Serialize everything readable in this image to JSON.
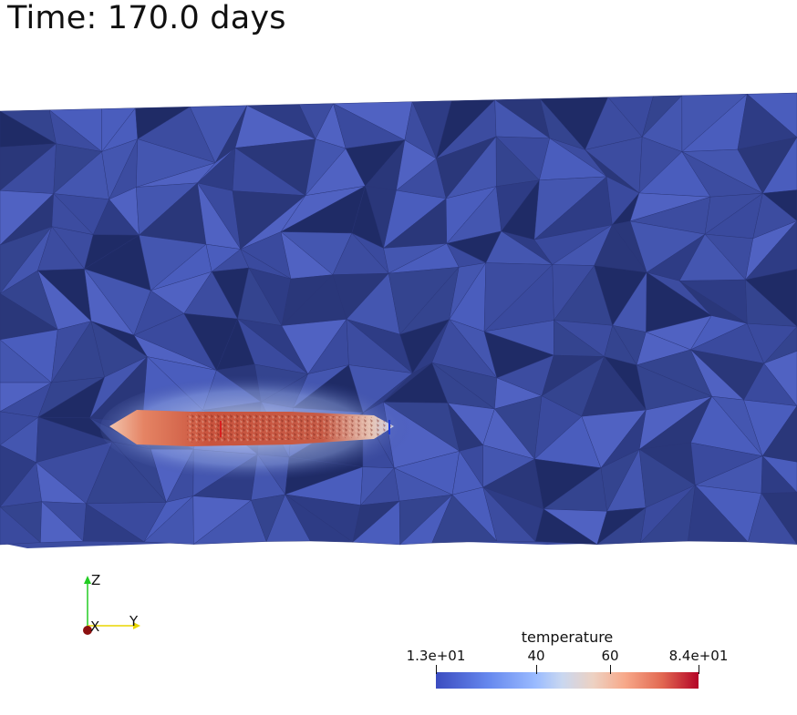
{
  "viewer": {
    "time_label": "Time: 170.0 days"
  },
  "axes_widget": {
    "x_label": "X",
    "y_label": "Y",
    "z_label": "Z"
  },
  "legend": {
    "title": "temperature",
    "ticks": [
      "1.3e+01",
      "40",
      "60",
      "8.4e+01"
    ],
    "min": 13,
    "max": 84,
    "colormap_start": "#3b4cc0",
    "colormap_end": "#b40426"
  },
  "colors": {
    "mesh_base": "#3c4ca0",
    "mesh_dark": "#1e2a66",
    "hot_core": "#b53a2a",
    "background": "#ffffff"
  }
}
